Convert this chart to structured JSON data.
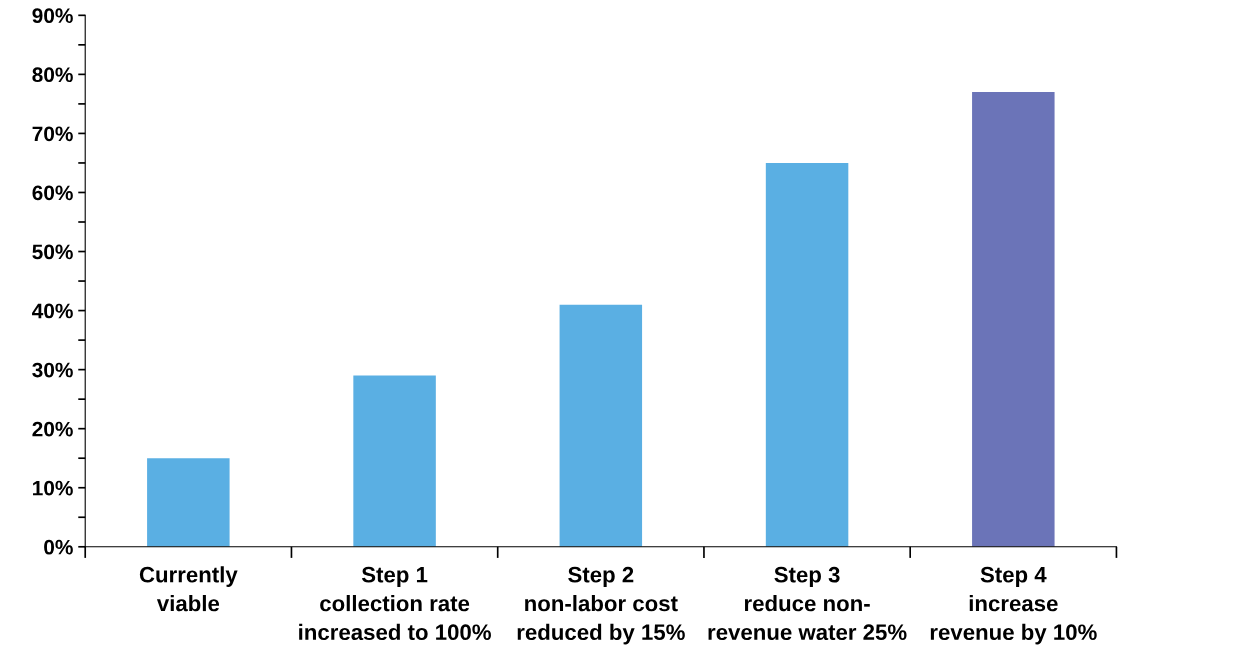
{
  "chart_data": {
    "type": "bar",
    "categories": [
      "Currently\nviable",
      "Step 1\ncollection rate\nincreased to 100%",
      "Step 2\nnon-labor cost\nreduced by 15%",
      "Step 3\nreduce non-\nrevenue water 25%",
      "Step 4\nincrease\nrevenue by 10%"
    ],
    "values": [
      15,
      29,
      41,
      65,
      77
    ],
    "colors": [
      "#5aafe3",
      "#5aafe3",
      "#5aafe3",
      "#5aafe3",
      "#6b74b8"
    ],
    "ylim": [
      0,
      90
    ],
    "yticks": [
      {
        "value": 0,
        "label": "0%"
      },
      {
        "value": 5,
        "label": null
      },
      {
        "value": 10,
        "label": "10%"
      },
      {
        "value": 15,
        "label": null
      },
      {
        "value": 20,
        "label": "20%"
      },
      {
        "value": 25,
        "label": null
      },
      {
        "value": 30,
        "label": "30%"
      },
      {
        "value": 35,
        "label": null
      },
      {
        "value": 40,
        "label": "40%"
      },
      {
        "value": 45,
        "label": null
      },
      {
        "value": 50,
        "label": "50%"
      },
      {
        "value": 55,
        "label": null
      },
      {
        "value": 60,
        "label": "60%"
      },
      {
        "value": 65,
        "label": null
      },
      {
        "value": 70,
        "label": "70%"
      },
      {
        "value": 75,
        "label": null
      },
      {
        "value": 80,
        "label": "80%"
      },
      {
        "value": 85,
        "label": null
      },
      {
        "value": 90,
        "label": "90%"
      }
    ],
    "grid": false,
    "legend": false
  }
}
